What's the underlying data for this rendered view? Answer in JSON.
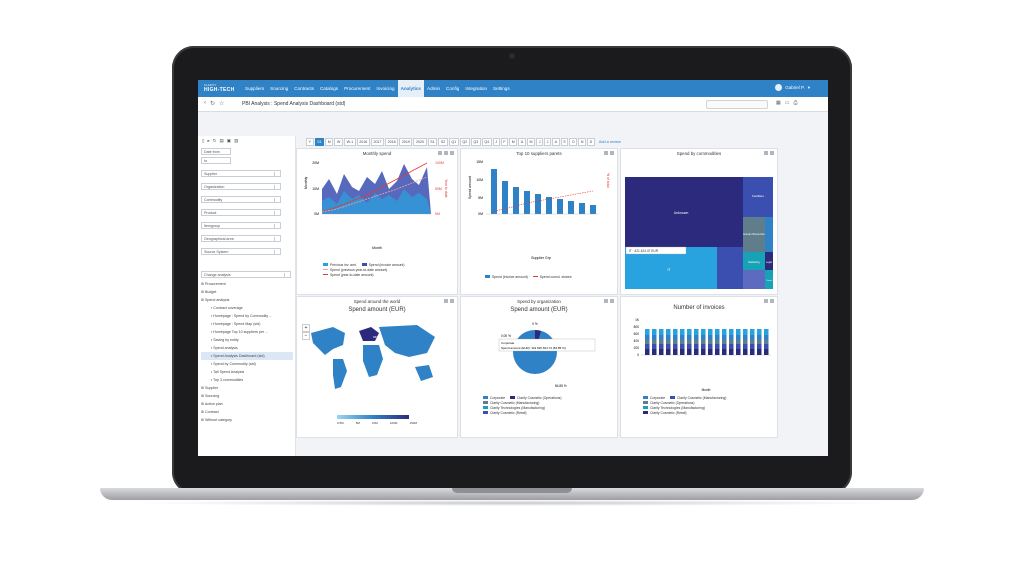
{
  "topnav": {
    "logo": "HIGH-TECH",
    "logo_small": "CLARITY",
    "menu": [
      "Suppliers",
      "Sourcing",
      "Contracts",
      "Catalogs",
      "Procurement",
      "Invoicing",
      "Analytics",
      "Admin",
      "Config",
      "Integration",
      "Settings"
    ],
    "active_menu": "Analytics",
    "user": "Gabriel P."
  },
  "breadcrumb": {
    "title": "PBI Analysis : Spend Analysis Dashboard (std)"
  },
  "filters": {
    "date_from": "Date from",
    "to": "to",
    "fields": [
      "Supplier",
      "Organization",
      "Commodity",
      "Product",
      "Itemgroup",
      "Geographical area",
      "Source System"
    ],
    "change_analysis": "Change analysis"
  },
  "tree": [
    {
      "label": "Procurement",
      "level": 0
    },
    {
      "label": "Budget",
      "level": 0
    },
    {
      "label": "Spend analysis",
      "level": 0
    },
    {
      "label": "Contract coverage",
      "level": 1
    },
    {
      "label": "Homepage : Spend by Commodity ...",
      "level": 1
    },
    {
      "label": "Homepage : Spend Map (std)",
      "level": 1
    },
    {
      "label": "Homepage Top 10 suppliers per ...",
      "level": 1
    },
    {
      "label": "Saving by entity",
      "level": 1
    },
    {
      "label": "Spend analysis",
      "level": 1
    },
    {
      "label": "Spend Analysis Dashboard (std)",
      "level": 1,
      "highlight": true
    },
    {
      "label": "Spend by Commodity (std)",
      "level": 1
    },
    {
      "label": "Tail Spend Analysis",
      "level": 1
    },
    {
      "label": "Top 3 commodities",
      "level": 1
    },
    {
      "label": "Supplier",
      "level": 0
    },
    {
      "label": "Sourcing",
      "level": 0
    },
    {
      "label": "Action plan",
      "level": 0
    },
    {
      "label": "Contract",
      "level": 0
    },
    {
      "label": "Without category",
      "level": 0
    }
  ],
  "period_buttons": [
    "Y",
    "S1",
    "M",
    "W",
    "W-1",
    "2016",
    "2017",
    "2018",
    "2019",
    "2020",
    "S1",
    "S2",
    "Q1",
    "Q2",
    "Q3",
    "Q4",
    "J",
    "F",
    "M",
    "A",
    "M",
    "J",
    "J",
    "A",
    "S",
    "O",
    "N",
    "D"
  ],
  "period_selected": [
    "S1"
  ],
  "add_review": "Add a review",
  "panels": {
    "monthly_spend": {
      "title": "Monthly spend",
      "ylabel": "Monthly",
      "y2label": "Year to date",
      "xlabel": "Month",
      "yticks": [
        "20M",
        "10M",
        "0M"
      ],
      "y2ticks": [
        "100M",
        "50M",
        "0M"
      ],
      "legend": [
        "Previous inv. amt.",
        "Spend (invoice amount)",
        "Spend (previous year-to-date amount)",
        "Spend (year-to-date amount)"
      ]
    },
    "top_suppliers": {
      "title": "Top 10 suppliers parets",
      "ylabel": "Spend amount",
      "y2label": "% of total",
      "xlabel": "Supplier Grp",
      "yticks": [
        "15M",
        "10M",
        "5M",
        "0M"
      ],
      "legend": [
        "Spend (invoice amount)",
        "Spend cumul. shares"
      ]
    },
    "commodities": {
      "title": "Spend by commodities",
      "labels": [
        "Unknown",
        "Facilities",
        "Human Resources",
        "Marketing",
        "Legal",
        "Travel"
      ],
      "tooltip": "IT : 421 424.47 EUR",
      "tooltip_label": "IT"
    },
    "world": {
      "title": "Spend around the world",
      "big": "Spend amount (EUR)",
      "scale": [
        "0.5M",
        "5M",
        "10M",
        "100M",
        "150M"
      ],
      "map_value": "96*"
    },
    "organization": {
      "title": "Spend by organization",
      "big": "Spend amount (EUR)",
      "labels": [
        "0 %",
        "0.00 %",
        "84.85 %"
      ],
      "tooltip_title": "Corporate",
      "tooltip_value": "Spend amount (EUR): 119 625 664.74 (84.85 %)",
      "legend": [
        "Corporate",
        "Clarity Cosmetic (Operations)",
        "Clarity Cosmetic (Manufacturing)",
        "Clarity Technologies (Manufacturing)",
        "Clarity Cosmetic (Retail)"
      ]
    },
    "invoices": {
      "title": "Number of invoices",
      "yticks": [
        "1K",
        "800",
        "600",
        "400",
        "200",
        "0"
      ],
      "xlabel": "Month",
      "legend": [
        "Corporate",
        "Clarity Cosmetic (Manufacturing)",
        "Clarity Cosmetic (Operations)",
        "Clarity Technologies (Manufacturing)",
        "Clarity Cosmetic (Retail)"
      ]
    }
  },
  "colors": {
    "nav": "#2f82c6",
    "dark": "#2c2a7d",
    "mid": "#3a4fb0",
    "light": "#29a3e0",
    "teal": "#17a2b8",
    "grey": "#607d8b",
    "red": "#e53935"
  }
}
